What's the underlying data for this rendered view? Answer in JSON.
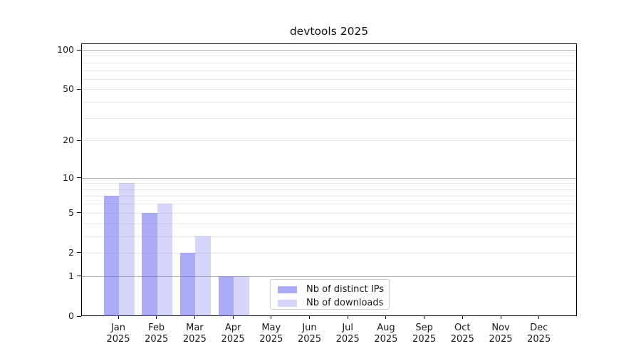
{
  "chart_data": {
    "type": "bar",
    "title": "devtools 2025",
    "categories": [
      "Jan",
      "Feb",
      "Mar",
      "Apr",
      "May",
      "Jun",
      "Jul",
      "Aug",
      "Sep",
      "Oct",
      "Nov",
      "Dec"
    ],
    "category_year_label": "2025",
    "series": [
      {
        "name": "Nb of distinct IPs",
        "color": "#6666ee",
        "fill_opacity": 0.55,
        "values": [
          7,
          5,
          2,
          1,
          0,
          0,
          0,
          0,
          0,
          0,
          0,
          0
        ]
      },
      {
        "name": "Nb of downloads",
        "color": "#6666ee",
        "fill_opacity": 0.27,
        "values": [
          9,
          6,
          3,
          1,
          0,
          0,
          0,
          0,
          0,
          0,
          0,
          0
        ]
      }
    ],
    "xlabel": "",
    "ylabel": "",
    "yscale": "log10(value+1)",
    "ylim": [
      0,
      100
    ],
    "ytick_values": [
      0,
      1,
      2,
      5,
      10,
      20,
      50,
      100
    ],
    "ytick_labels": [
      "0",
      "1",
      "2",
      "5",
      "10",
      "20",
      "50",
      "100"
    ],
    "major_grid_values": [
      1,
      10,
      100
    ],
    "minor_grid_values": [
      2,
      3,
      4,
      5,
      6,
      7,
      8,
      9,
      20,
      30,
      40,
      50,
      60,
      70,
      80,
      90
    ],
    "grid": true,
    "legend_position": "bottom-center-inside"
  },
  "colors": {
    "background": "#ffffff",
    "spine": "#000000",
    "major_grid": "#b0b0b0",
    "minor_grid": "#e8e8e8",
    "text": "#1a1a1a",
    "bar_dark_visual": "#aaaaf5",
    "bar_light_visual": "#d6d6f9",
    "legend_border": "#cccccc"
  }
}
